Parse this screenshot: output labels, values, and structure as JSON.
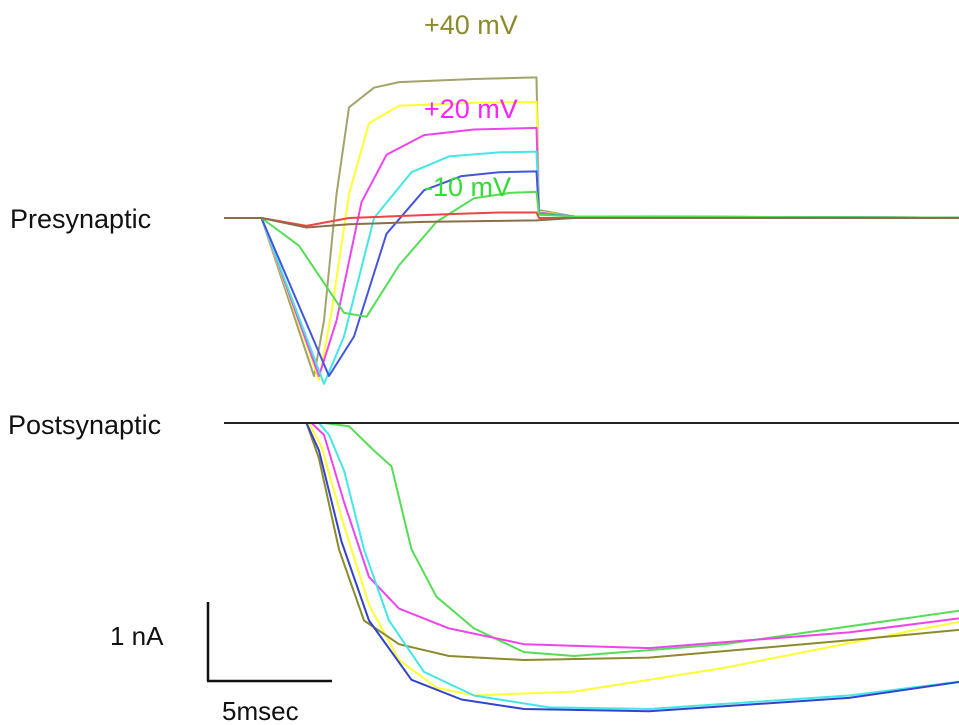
{
  "chart_data": [
    {
      "type": "line",
      "panel": "presynaptic",
      "label": "Presynaptic",
      "units": "nA",
      "x_units": "msec",
      "annotations": [
        {
          "text": "+40 mV",
          "color": "#8b8b2e"
        },
        {
          "text": "+20 mV",
          "color": "#ff22ff"
        },
        {
          "text": "-10 mV",
          "color": "#33dd33"
        }
      ],
      "series": [
        {
          "color": "#a3a36a",
          "points": [
            [
              0,
              0
            ],
            [
              1.5,
              0
            ],
            [
              3.6,
              -2.0
            ],
            [
              4.0,
              -1.3
            ],
            [
              4.5,
              0.3
            ],
            [
              5.0,
              1.4
            ],
            [
              6,
              1.65
            ],
            [
              7,
              1.72
            ],
            [
              10,
              1.76
            ],
            [
              12.5,
              1.78
            ],
            [
              12.6,
              0.1
            ],
            [
              14,
              0.02
            ],
            [
              35,
              0
            ]
          ]
        },
        {
          "color": "#ffff33",
          "points": [
            [
              0,
              0
            ],
            [
              1.5,
              0
            ],
            [
              3.8,
              -2.05
            ],
            [
              4.3,
              -1.2
            ],
            [
              5.0,
              0.3
            ],
            [
              5.8,
              1.2
            ],
            [
              7,
              1.42
            ],
            [
              10,
              1.46
            ],
            [
              12.5,
              1.47
            ],
            [
              12.6,
              0.08
            ],
            [
              14,
              0.02
            ],
            [
              35,
              0
            ]
          ]
        },
        {
          "color": "#ee44ee",
          "points": [
            [
              0,
              0
            ],
            [
              1.5,
              0
            ],
            [
              3.8,
              -2.0
            ],
            [
              4.5,
              -1.3
            ],
            [
              5.5,
              0.2
            ],
            [
              6.5,
              0.8
            ],
            [
              8,
              1.05
            ],
            [
              10,
              1.12
            ],
            [
              12.5,
              1.14
            ],
            [
              12.6,
              0.07
            ],
            [
              14,
              0.02
            ],
            [
              35,
              0
            ]
          ]
        },
        {
          "color": "#44e6e6",
          "points": [
            [
              0,
              0
            ],
            [
              1.5,
              0
            ],
            [
              4.0,
              -2.1
            ],
            [
              4.8,
              -1.5
            ],
            [
              6.0,
              0.0
            ],
            [
              7.5,
              0.58
            ],
            [
              9,
              0.78
            ],
            [
              11,
              0.83
            ],
            [
              12.5,
              0.84
            ],
            [
              12.6,
              0.06
            ],
            [
              14,
              0.02
            ],
            [
              35,
              0
            ]
          ]
        },
        {
          "color": "#4455dd",
          "points": [
            [
              0,
              0
            ],
            [
              1.5,
              0
            ],
            [
              4.2,
              -2.0
            ],
            [
              5.2,
              -1.5
            ],
            [
              6.5,
              -0.2
            ],
            [
              8,
              0.35
            ],
            [
              9.5,
              0.53
            ],
            [
              11,
              0.58
            ],
            [
              12.5,
              0.59
            ],
            [
              12.6,
              0.05
            ],
            [
              14,
              0.02
            ],
            [
              35,
              0
            ]
          ]
        },
        {
          "color": "#55dd55",
          "points": [
            [
              0,
              0
            ],
            [
              1.5,
              0
            ],
            [
              3.0,
              -0.35
            ],
            [
              4.8,
              -1.2
            ],
            [
              5.7,
              -1.25
            ],
            [
              7,
              -0.6
            ],
            [
              8.5,
              -0.05
            ],
            [
              10,
              0.25
            ],
            [
              11.5,
              0.32
            ],
            [
              12.5,
              0.33
            ],
            [
              12.6,
              0.04
            ],
            [
              14,
              0.02
            ],
            [
              35,
              0
            ]
          ]
        },
        {
          "color": "#ee4444",
          "points": [
            [
              0,
              0
            ],
            [
              1.5,
              0
            ],
            [
              3.3,
              -0.1
            ],
            [
              5,
              0.0
            ],
            [
              9,
              0.05
            ],
            [
              11,
              0.07
            ],
            [
              12.5,
              0.07
            ],
            [
              12.6,
              0.0
            ],
            [
              35,
              0
            ]
          ]
        },
        {
          "color": "#8b6d4a",
          "points": [
            [
              0,
              0
            ],
            [
              1.5,
              0
            ],
            [
              3.3,
              -0.12
            ],
            [
              5,
              -0.08
            ],
            [
              8,
              -0.05
            ],
            [
              12.5,
              -0.03
            ],
            [
              14,
              0.0
            ],
            [
              35,
              0
            ]
          ]
        }
      ]
    },
    {
      "type": "line",
      "panel": "postsynaptic",
      "label": "Postsynaptic",
      "units": "nA",
      "x_units": "msec",
      "series": [
        {
          "color": "#55dd55",
          "points": [
            [
              0,
              0
            ],
            [
              4.0,
              0
            ],
            [
              5.0,
              -0.04
            ],
            [
              6.0,
              -0.35
            ],
            [
              6.7,
              -0.55
            ],
            [
              7.5,
              -1.6
            ],
            [
              8.5,
              -2.2
            ],
            [
              10,
              -2.6
            ],
            [
              12,
              -2.9
            ],
            [
              14,
              -2.95
            ],
            [
              20,
              -2.8
            ],
            [
              30,
              -2.35
            ],
            [
              35,
              -2.1
            ]
          ]
        },
        {
          "color": "#ee44ee",
          "points": [
            [
              0,
              0
            ],
            [
              3.5,
              0
            ],
            [
              4.0,
              -0.15
            ],
            [
              4.8,
              -1.0
            ],
            [
              5.8,
              -1.95
            ],
            [
              7,
              -2.35
            ],
            [
              9,
              -2.6
            ],
            [
              12,
              -2.8
            ],
            [
              17,
              -2.85
            ],
            [
              25,
              -2.65
            ],
            [
              30,
              -2.45
            ],
            [
              35,
              -2.22
            ]
          ]
        },
        {
          "color": "#ffff33",
          "points": [
            [
              0,
              0
            ],
            [
              3.4,
              0
            ],
            [
              3.9,
              -0.3
            ],
            [
              4.8,
              -1.3
            ],
            [
              5.8,
              -2.3
            ],
            [
              7,
              -3.0
            ],
            [
              8.5,
              -3.35
            ],
            [
              10,
              -3.45
            ],
            [
              14,
              -3.4
            ],
            [
              20,
              -3.1
            ],
            [
              28,
              -2.6
            ],
            [
              35,
              -2.2
            ]
          ]
        },
        {
          "color": "#8b8b2e",
          "points": [
            [
              0,
              0
            ],
            [
              3.3,
              0
            ],
            [
              3.8,
              -0.45
            ],
            [
              4.6,
              -1.6
            ],
            [
              5.6,
              -2.5
            ],
            [
              7,
              -2.8
            ],
            [
              9,
              -2.95
            ],
            [
              12,
              -3.0
            ],
            [
              17,
              -2.97
            ],
            [
              25,
              -2.75
            ],
            [
              30,
              -2.6
            ],
            [
              35,
              -2.4
            ]
          ]
        },
        {
          "color": "#44e6e6",
          "points": [
            [
              0,
              0
            ],
            [
              3.8,
              0
            ],
            [
              4.2,
              -0.15
            ],
            [
              4.8,
              -0.6
            ],
            [
              5.6,
              -1.6
            ],
            [
              6.6,
              -2.5
            ],
            [
              8,
              -3.15
            ],
            [
              10,
              -3.45
            ],
            [
              13,
              -3.6
            ],
            [
              17,
              -3.62
            ],
            [
              25,
              -3.45
            ],
            [
              30,
              -3.25
            ],
            [
              35,
              -2.98
            ]
          ]
        },
        {
          "color": "#3344cc",
          "points": [
            [
              0,
              0
            ],
            [
              3.3,
              0
            ],
            [
              3.8,
              -0.35
            ],
            [
              4.7,
              -1.5
            ],
            [
              5.8,
              -2.5
            ],
            [
              7.5,
              -3.25
            ],
            [
              9.5,
              -3.5
            ],
            [
              12,
              -3.62
            ],
            [
              17,
              -3.65
            ],
            [
              25,
              -3.48
            ],
            [
              30,
              -3.25
            ],
            [
              35,
              -2.98
            ]
          ]
        },
        {
          "color": "#ee4444",
          "points": [
            [
              0,
              0
            ],
            [
              35,
              0
            ]
          ]
        },
        {
          "color": "#222222",
          "points": [
            [
              0,
              0
            ],
            [
              35,
              0
            ]
          ]
        }
      ]
    }
  ],
  "scale_bar": {
    "y_label": "1 nA",
    "x_label": "5msec",
    "y_value": 1,
    "x_value": 5
  }
}
